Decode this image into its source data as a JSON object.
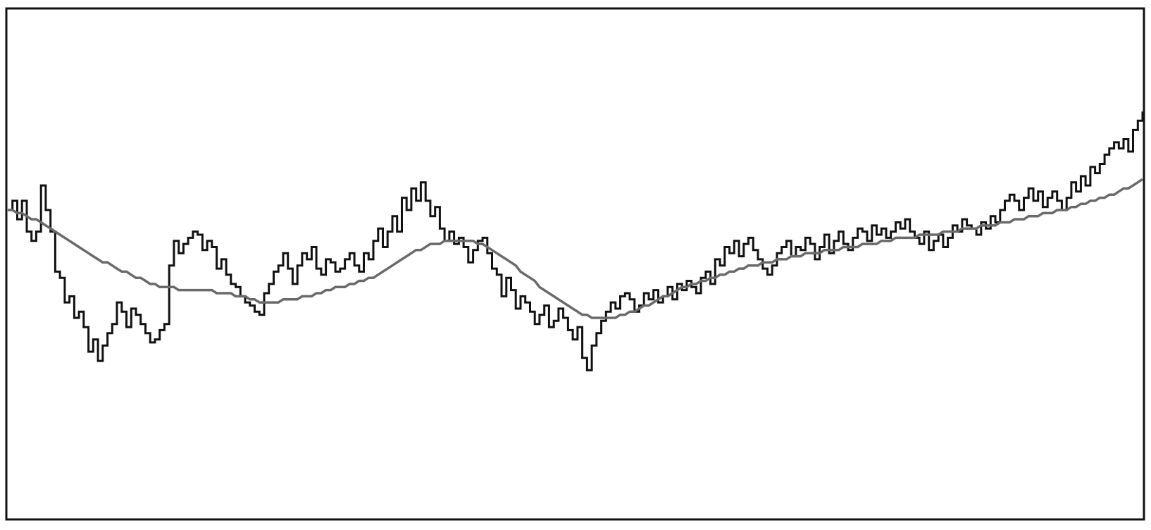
{
  "chart_data": {
    "type": "line",
    "title": "",
    "xlabel": "",
    "ylabel": "",
    "grid": false,
    "legend": "none",
    "xlim": [
      0,
      240
    ],
    "ylim": [
      -0.6,
      1.05
    ],
    "series": [
      {
        "style": "stepped-noisy",
        "color": "#111111",
        "values": [
          0.4,
          0.43,
          0.37,
          0.43,
          0.33,
          0.3,
          0.33,
          0.48,
          0.4,
          0.33,
          0.2,
          0.18,
          0.1,
          0.12,
          0.05,
          0.07,
          0.02,
          -0.06,
          -0.02,
          -0.09,
          -0.04,
          0.0,
          0.03,
          0.1,
          0.07,
          0.02,
          0.08,
          0.06,
          0.03,
          0.0,
          -0.03,
          -0.02,
          0.01,
          0.03,
          0.22,
          0.3,
          0.26,
          0.29,
          0.31,
          0.33,
          0.32,
          0.27,
          0.3,
          0.28,
          0.21,
          0.24,
          0.19,
          0.16,
          0.15,
          0.12,
          0.1,
          0.09,
          0.07,
          0.06,
          0.13,
          0.16,
          0.2,
          0.22,
          0.26,
          0.21,
          0.16,
          0.22,
          0.26,
          0.24,
          0.28,
          0.21,
          0.19,
          0.24,
          0.23,
          0.2,
          0.21,
          0.24,
          0.26,
          0.22,
          0.2,
          0.26,
          0.24,
          0.3,
          0.34,
          0.28,
          0.33,
          0.38,
          0.33,
          0.44,
          0.4,
          0.47,
          0.43,
          0.49,
          0.43,
          0.38,
          0.41,
          0.34,
          0.3,
          0.33,
          0.29,
          0.31,
          0.28,
          0.23,
          0.27,
          0.3,
          0.31,
          0.26,
          0.21,
          0.19,
          0.12,
          0.18,
          0.14,
          0.08,
          0.12,
          0.1,
          0.07,
          0.03,
          0.06,
          0.09,
          0.02,
          0.04,
          0.08,
          0.05,
          0.01,
          -0.02,
          0.02,
          -0.08,
          -0.12,
          -0.04,
          0.0,
          0.04,
          0.07,
          0.1,
          0.08,
          0.12,
          0.13,
          0.11,
          0.07,
          0.09,
          0.13,
          0.11,
          0.14,
          0.1,
          0.12,
          0.15,
          0.11,
          0.16,
          0.14,
          0.17,
          0.15,
          0.13,
          0.18,
          0.2,
          0.16,
          0.24,
          0.22,
          0.28,
          0.26,
          0.3,
          0.25,
          0.29,
          0.31,
          0.27,
          0.24,
          0.21,
          0.19,
          0.22,
          0.26,
          0.28,
          0.3,
          0.25,
          0.28,
          0.27,
          0.31,
          0.29,
          0.24,
          0.28,
          0.32,
          0.26,
          0.3,
          0.33,
          0.29,
          0.27,
          0.31,
          0.34,
          0.33,
          0.3,
          0.35,
          0.32,
          0.34,
          0.31,
          0.33,
          0.36,
          0.34,
          0.37,
          0.33,
          0.31,
          0.29,
          0.33,
          0.27,
          0.3,
          0.32,
          0.28,
          0.31,
          0.35,
          0.33,
          0.37,
          0.35,
          0.34,
          0.32,
          0.36,
          0.34,
          0.38,
          0.36,
          0.4,
          0.43,
          0.45,
          0.43,
          0.4,
          0.44,
          0.47,
          0.43,
          0.46,
          0.41,
          0.44,
          0.46,
          0.43,
          0.4,
          0.44,
          0.49,
          0.46,
          0.51,
          0.48,
          0.54,
          0.52,
          0.55,
          0.58,
          0.6,
          0.62,
          0.6,
          0.63,
          0.59,
          0.66,
          0.69,
          0.72
        ]
      },
      {
        "style": "smooth",
        "color": "#6a6a6a",
        "values": [
          0.4,
          0.4,
          0.39,
          0.39,
          0.38,
          0.37,
          0.37,
          0.36,
          0.35,
          0.34,
          0.33,
          0.32,
          0.31,
          0.3,
          0.29,
          0.28,
          0.27,
          0.26,
          0.25,
          0.24,
          0.23,
          0.23,
          0.22,
          0.21,
          0.2,
          0.2,
          0.19,
          0.18,
          0.18,
          0.17,
          0.16,
          0.16,
          0.15,
          0.15,
          0.15,
          0.15,
          0.14,
          0.14,
          0.14,
          0.14,
          0.14,
          0.14,
          0.14,
          0.14,
          0.13,
          0.13,
          0.13,
          0.13,
          0.12,
          0.12,
          0.12,
          0.11,
          0.11,
          0.1,
          0.1,
          0.1,
          0.1,
          0.1,
          0.11,
          0.11,
          0.11,
          0.11,
          0.12,
          0.12,
          0.12,
          0.13,
          0.13,
          0.14,
          0.14,
          0.15,
          0.15,
          0.15,
          0.16,
          0.16,
          0.17,
          0.17,
          0.18,
          0.18,
          0.19,
          0.2,
          0.21,
          0.22,
          0.23,
          0.24,
          0.25,
          0.26,
          0.27,
          0.27,
          0.28,
          0.29,
          0.29,
          0.29,
          0.3,
          0.3,
          0.3,
          0.3,
          0.3,
          0.3,
          0.3,
          0.29,
          0.29,
          0.28,
          0.27,
          0.26,
          0.25,
          0.24,
          0.23,
          0.22,
          0.2,
          0.19,
          0.18,
          0.17,
          0.15,
          0.14,
          0.13,
          0.12,
          0.11,
          0.1,
          0.09,
          0.08,
          0.07,
          0.06,
          0.06,
          0.05,
          0.05,
          0.05,
          0.05,
          0.05,
          0.05,
          0.06,
          0.06,
          0.07,
          0.07,
          0.08,
          0.09,
          0.09,
          0.1,
          0.11,
          0.12,
          0.12,
          0.13,
          0.14,
          0.15,
          0.15,
          0.16,
          0.16,
          0.17,
          0.17,
          0.18,
          0.18,
          0.19,
          0.19,
          0.2,
          0.2,
          0.21,
          0.21,
          0.22,
          0.22,
          0.22,
          0.23,
          0.23,
          0.23,
          0.24,
          0.24,
          0.24,
          0.25,
          0.25,
          0.25,
          0.26,
          0.26,
          0.26,
          0.26,
          0.27,
          0.27,
          0.27,
          0.27,
          0.28,
          0.28,
          0.28,
          0.28,
          0.29,
          0.29,
          0.29,
          0.29,
          0.3,
          0.3,
          0.3,
          0.31,
          0.31,
          0.31,
          0.31,
          0.31,
          0.32,
          0.32,
          0.32,
          0.32,
          0.32,
          0.33,
          0.33,
          0.33,
          0.33,
          0.34,
          0.34,
          0.34,
          0.34,
          0.35,
          0.35,
          0.35,
          0.35,
          0.36,
          0.36,
          0.36,
          0.37,
          0.37,
          0.37,
          0.38,
          0.38,
          0.38,
          0.39,
          0.39,
          0.39,
          0.4,
          0.4,
          0.4,
          0.41,
          0.41,
          0.42,
          0.42,
          0.43,
          0.43,
          0.44,
          0.44,
          0.45,
          0.45,
          0.46,
          0.47,
          0.47,
          0.48,
          0.49,
          0.5
        ]
      }
    ]
  }
}
